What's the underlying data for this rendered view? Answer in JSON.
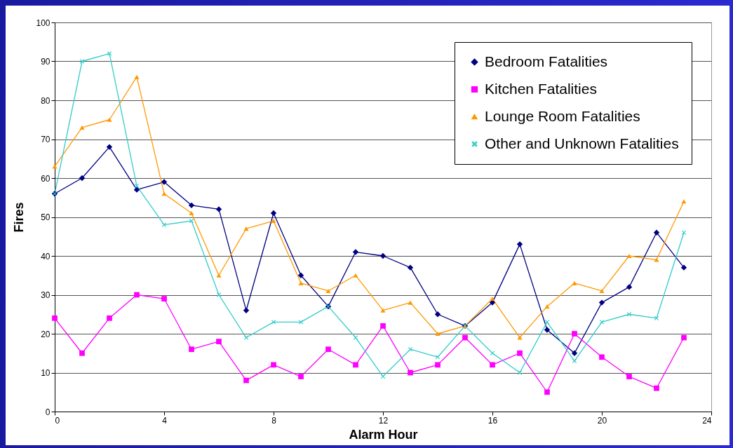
{
  "chart_data": {
    "type": "line",
    "xlabel": "Alarm Hour",
    "ylabel": "Fires",
    "x": [
      0,
      1,
      2,
      3,
      4,
      5,
      6,
      7,
      8,
      9,
      10,
      11,
      12,
      13,
      14,
      15,
      16,
      17,
      18,
      19,
      20,
      21,
      22,
      23
    ],
    "series": [
      {
        "name": "Bedroom Fatalities",
        "color": "#000080",
        "marker": "diamond",
        "values": [
          56,
          60,
          68,
          57,
          59,
          53,
          52,
          26,
          51,
          35,
          27,
          41,
          40,
          37,
          25,
          22,
          28,
          43,
          21,
          15,
          28,
          32,
          46,
          37
        ]
      },
      {
        "name": "Kitchen Fatalities",
        "color": "#ff00ff",
        "marker": "square",
        "values": [
          24,
          15,
          24,
          30,
          29,
          16,
          18,
          8,
          12,
          9,
          16,
          12,
          22,
          10,
          12,
          19,
          12,
          15,
          5,
          20,
          14,
          9,
          6,
          19
        ]
      },
      {
        "name": "Lounge Room Fatalities",
        "color": "#ff9900",
        "marker": "triangle",
        "values": [
          63,
          73,
          75,
          86,
          56,
          51,
          35,
          47,
          49,
          33,
          31,
          35,
          26,
          28,
          20,
          22,
          29,
          19,
          27,
          33,
          31,
          40,
          39,
          54
        ]
      },
      {
        "name": "Other and Unknown Fatalities",
        "color": "#33cccc",
        "marker": "cross",
        "values": [
          56,
          90,
          92,
          58,
          48,
          49,
          30,
          19,
          23,
          23,
          27,
          19,
          9,
          16,
          14,
          22,
          15,
          10,
          23,
          13,
          23,
          25,
          24,
          46
        ]
      }
    ],
    "xlim": [
      0,
      24
    ],
    "xticks": [
      0,
      4,
      8,
      12,
      16,
      20,
      24
    ],
    "ylim": [
      0,
      100
    ],
    "yticks": [
      0,
      10,
      20,
      30,
      40,
      50,
      60,
      70,
      80,
      90,
      100
    ],
    "grid": "y",
    "legend": "top right"
  }
}
